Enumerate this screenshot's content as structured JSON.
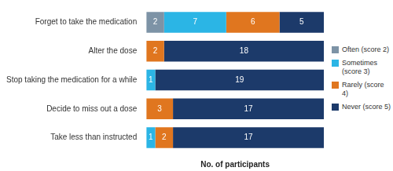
{
  "chart_data": {
    "type": "bar",
    "orientation": "horizontal",
    "stacked": true,
    "data_labels": true,
    "tick_labels": "y",
    "grid": false,
    "legend": "right",
    "x_label": "No. of participants",
    "categories": [
      "Forget to take the medication",
      "Alter the dose",
      "Stop taking the medication for a while",
      "Decide to miss out a dose",
      "Take less than instructed"
    ],
    "xlim": [
      0,
      20
    ],
    "series": [
      {
        "name": "Often (score 2)",
        "color": "#7d93a6",
        "values": [
          2,
          0,
          0,
          0,
          0
        ]
      },
      {
        "name": "Sometimes (score 3)",
        "color": "#2bb5e5",
        "values": [
          7,
          0,
          1,
          0,
          1
        ]
      },
      {
        "name": "Rarely (score 4)",
        "color": "#e0761f",
        "values": [
          6,
          2,
          0,
          3,
          2
        ]
      },
      {
        "name": "Never (score 5)",
        "color": "#1c3a6a",
        "values": [
          5,
          18,
          19,
          17,
          17
        ]
      }
    ]
  }
}
